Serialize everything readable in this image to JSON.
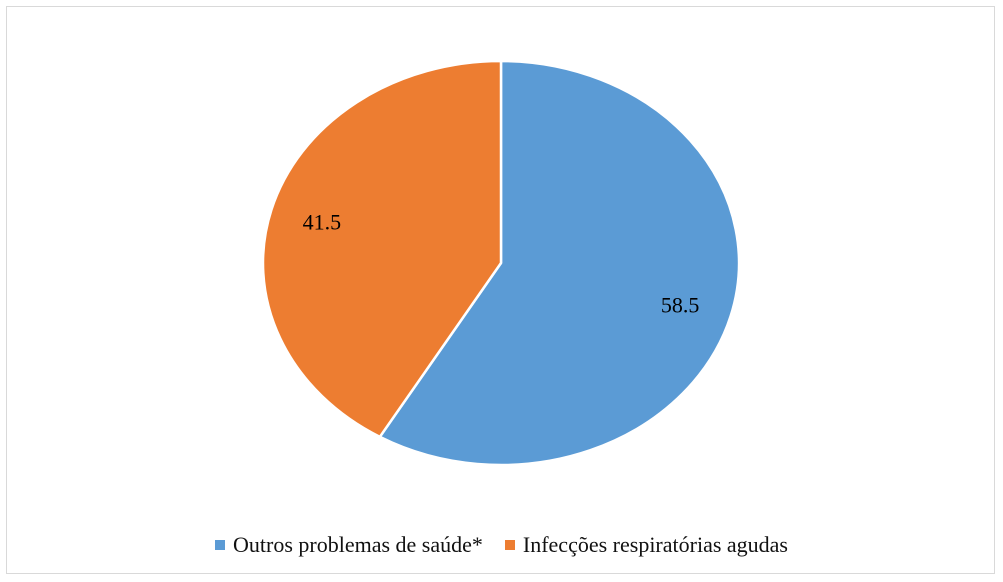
{
  "chart_data": {
    "type": "pie",
    "title": "",
    "slices": [
      {
        "label": "Outros problemas de saúde*",
        "value": 58.5,
        "display": "58.5",
        "color": "#5b9bd5"
      },
      {
        "label": "Infecções respiratórias agudas",
        "value": 41.5,
        "display": "41.5",
        "color": "#ed7d31"
      }
    ],
    "start_angle": "12 o'clock",
    "direction": "clockwise",
    "legend_position": "bottom",
    "slice_border_color": "#ffffff"
  }
}
